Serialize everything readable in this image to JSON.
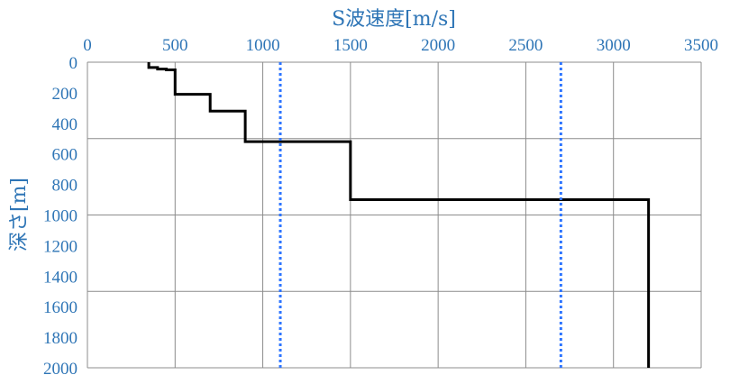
{
  "chart_data": {
    "type": "line",
    "title": "",
    "xlabel": "S波速度[m/s]",
    "ylabel": "深さ[m]",
    "x_axis_position": "top",
    "y_axis_inverted": true,
    "xlim": [
      0,
      3500
    ],
    "ylim": [
      0,
      2000
    ],
    "x_ticks": [
      0,
      500,
      1000,
      1500,
      2000,
      2500,
      3000,
      3500
    ],
    "y_ticks": [
      0,
      200,
      400,
      600,
      800,
      1000,
      1200,
      1400,
      1600,
      1800,
      2000
    ],
    "grid": true,
    "legend": "none",
    "series": [
      {
        "style": "solid",
        "color": "#000000",
        "points": [
          [
            350,
            0
          ],
          [
            350,
            35
          ],
          [
            400,
            35
          ],
          [
            400,
            45
          ],
          [
            450,
            45
          ],
          [
            450,
            50
          ],
          [
            500,
            50
          ],
          [
            500,
            210
          ],
          [
            700,
            210
          ],
          [
            700,
            320
          ],
          [
            900,
            320
          ],
          [
            900,
            520
          ],
          [
            1500,
            520
          ],
          [
            1500,
            900
          ],
          [
            3200,
            900
          ],
          [
            3200,
            2000
          ]
        ]
      },
      {
        "style": "dotted",
        "color": "#2E75FF",
        "points": [
          [
            1100,
            0
          ],
          [
            1100,
            2000
          ]
        ]
      },
      {
        "style": "dotted",
        "color": "#2E75FF",
        "points": [
          [
            2700,
            0
          ],
          [
            2700,
            2000
          ]
        ]
      }
    ]
  },
  "colors": {
    "tick_label": "#2E75B6",
    "axis_title": "#2E75B6",
    "grid": "#8C8C8C",
    "frame": "#8C8C8C"
  }
}
